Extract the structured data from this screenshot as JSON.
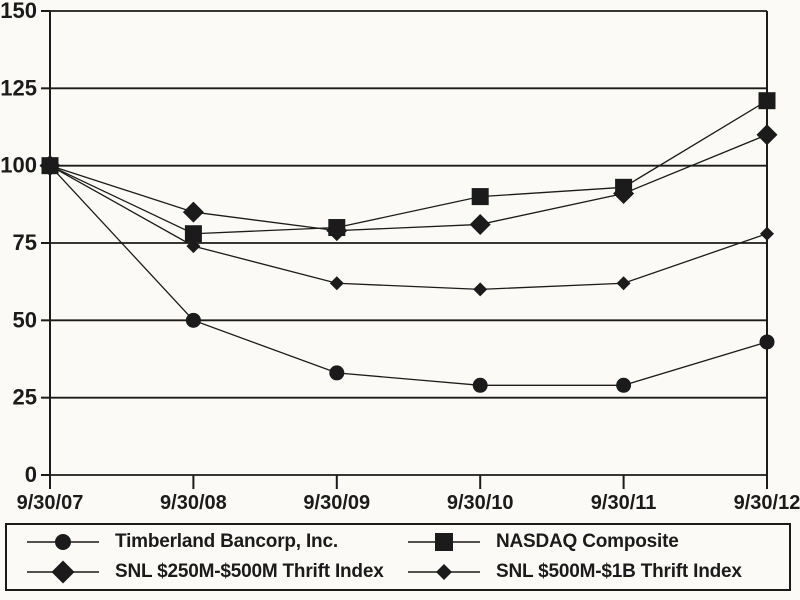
{
  "colors": {
    "background": "#fbfaf6",
    "ink": "#1b1b1b"
  },
  "chart_data": {
    "type": "line",
    "title": "",
    "xlabel": "",
    "ylabel": "",
    "categories": [
      "9/30/07",
      "9/30/08",
      "9/30/09",
      "9/30/10",
      "9/30/11",
      "9/30/12"
    ],
    "series": [
      {
        "name": "Timberland Bancorp, Inc.",
        "marker": "circle",
        "values": [
          100,
          50,
          33,
          29,
          29,
          43
        ]
      },
      {
        "name": "NASDAQ Composite",
        "marker": "square",
        "values": [
          100,
          78,
          80,
          90,
          93,
          121
        ]
      },
      {
        "name": "SNL $250M-$500M Thrift Index",
        "marker": "diamond-large",
        "values": [
          100,
          85,
          79,
          81,
          91,
          110
        ]
      },
      {
        "name": "SNL $500M-$1B Thrift Index",
        "marker": "diamond-small",
        "values": [
          100,
          74,
          62,
          60,
          62,
          78
        ]
      }
    ],
    "ylim": [
      0,
      150
    ],
    "yticks": [
      0,
      25,
      50,
      75,
      100,
      125,
      150
    ],
    "grid": "horizontal",
    "legend_position": "bottom-box"
  }
}
